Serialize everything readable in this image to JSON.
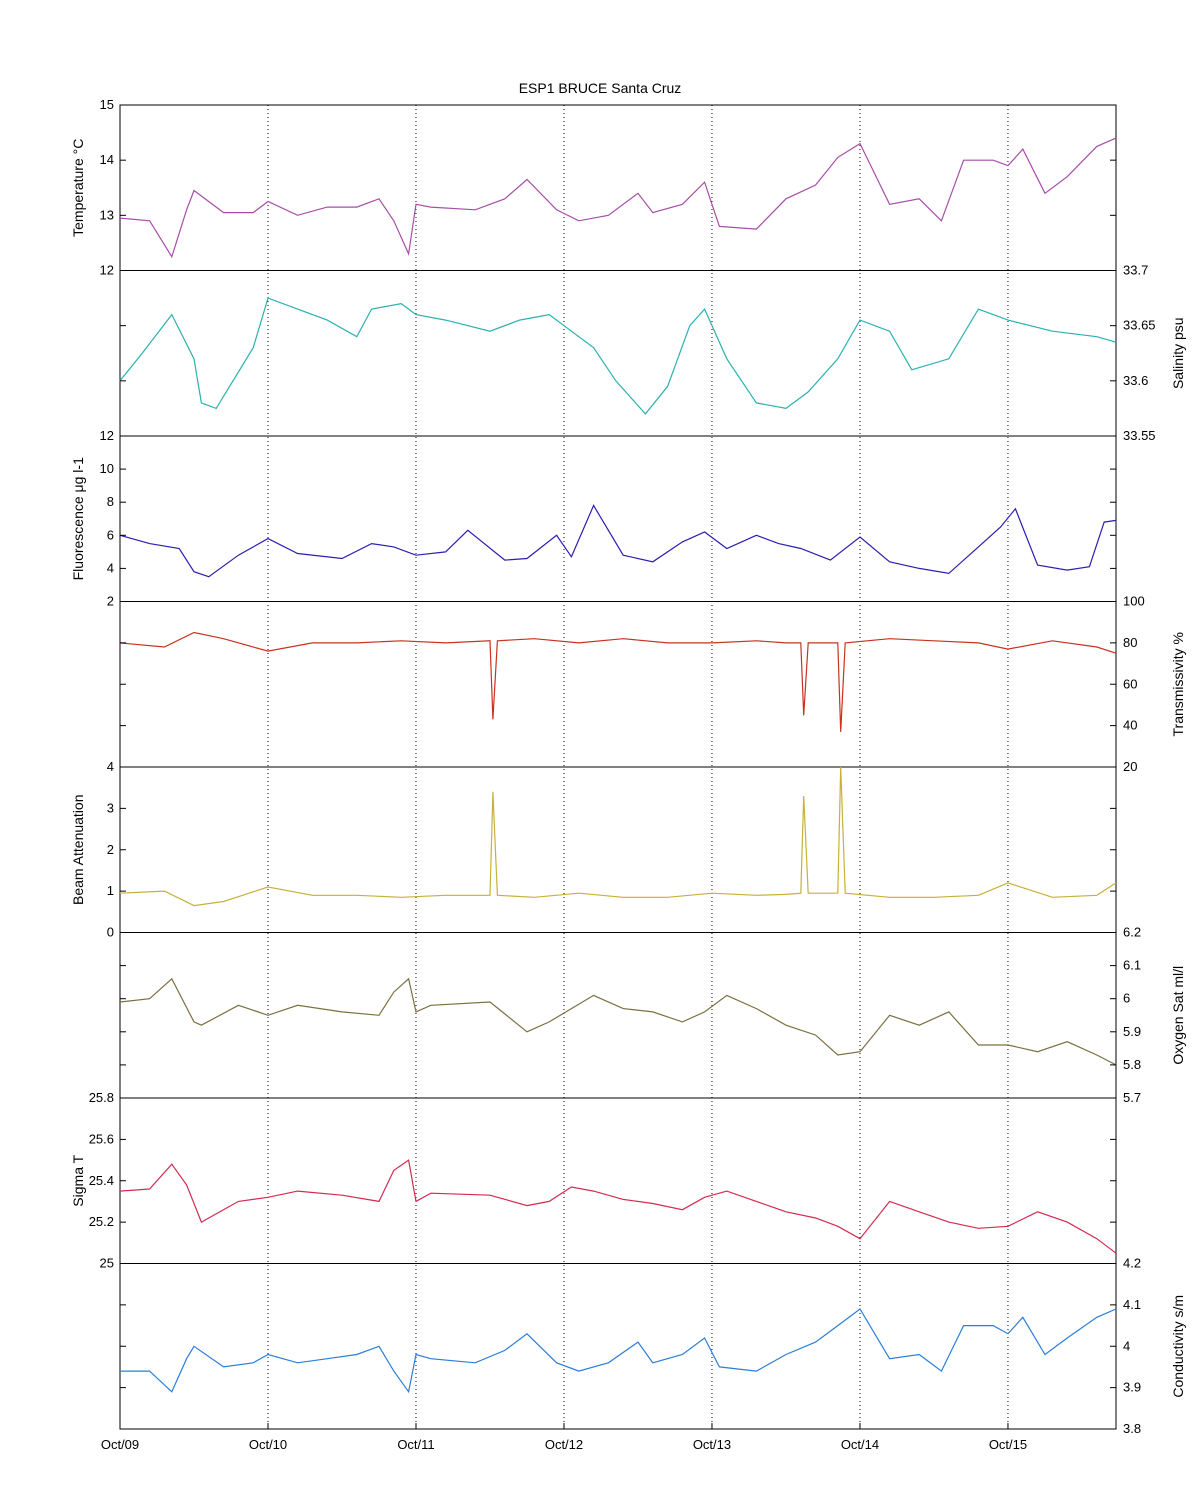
{
  "chart_data": {
    "type": "line",
    "title": "ESP1 BRUCE Santa Cruz",
    "x_axis": {
      "ticks": [
        "Oct/09",
        "Oct/10",
        "Oct/11",
        "Oct/12",
        "Oct/13",
        "Oct/14",
        "Oct/15"
      ],
      "xlim": [
        0,
        6.73
      ],
      "grid": "dotted vertical lines at day ticks"
    },
    "panels": [
      {
        "name": "temperature",
        "ylabel": "Temperature °C",
        "axis_side": "left",
        "ylim": [
          12,
          15
        ],
        "yticks": [
          "12",
          "13",
          "14",
          "15"
        ],
        "tick_values": [
          12,
          13,
          14,
          15
        ],
        "color": "#a64ea8",
        "x": [
          0,
          0.2,
          0.35,
          0.45,
          0.5,
          0.7,
          0.9,
          1.0,
          1.2,
          1.4,
          1.6,
          1.75,
          1.85,
          1.95,
          2.0,
          2.1,
          2.4,
          2.6,
          2.75,
          2.95,
          3.1,
          3.3,
          3.5,
          3.6,
          3.8,
          3.95,
          4.05,
          4.3,
          4.5,
          4.7,
          4.85,
          5.0,
          5.2,
          5.4,
          5.55,
          5.7,
          5.9,
          6.0,
          6.1,
          6.25,
          6.4,
          6.6,
          6.73
        ],
        "y": [
          12.95,
          12.9,
          12.25,
          13.1,
          13.45,
          13.05,
          13.05,
          13.25,
          13.0,
          13.15,
          13.15,
          13.3,
          12.9,
          12.3,
          13.2,
          13.15,
          13.1,
          13.3,
          13.65,
          13.1,
          12.9,
          13.0,
          13.4,
          13.05,
          13.2,
          13.6,
          12.8,
          12.75,
          13.3,
          13.55,
          14.05,
          14.3,
          13.2,
          13.3,
          12.9,
          14.0,
          14.0,
          13.9,
          14.2,
          13.4,
          13.7,
          14.25,
          14.4
        ]
      },
      {
        "name": "salinity",
        "ylabel": "Salinity psu",
        "axis_side": "right",
        "ylim": [
          33.55,
          33.7
        ],
        "yticks": [
          "33.55",
          "33.6",
          "33.65",
          "33.7"
        ],
        "tick_values": [
          33.55,
          33.6,
          33.65,
          33.7
        ],
        "color": "#2bb0b0",
        "x": [
          0,
          0.15,
          0.35,
          0.5,
          0.55,
          0.65,
          0.9,
          1.0,
          1.2,
          1.4,
          1.6,
          1.7,
          1.9,
          2.0,
          2.2,
          2.5,
          2.7,
          2.9,
          3.05,
          3.2,
          3.35,
          3.55,
          3.7,
          3.85,
          3.95,
          4.1,
          4.3,
          4.5,
          4.65,
          4.85,
          5.0,
          5.2,
          5.35,
          5.6,
          5.8,
          6.0,
          6.3,
          6.6,
          6.73
        ],
        "y": [
          33.6,
          33.625,
          33.66,
          33.62,
          33.58,
          33.575,
          33.63,
          33.675,
          33.665,
          33.655,
          33.64,
          33.665,
          33.67,
          33.66,
          33.655,
          33.645,
          33.655,
          33.66,
          33.645,
          33.63,
          33.6,
          33.57,
          33.595,
          33.65,
          33.665,
          33.62,
          33.58,
          33.575,
          33.59,
          33.62,
          33.655,
          33.645,
          33.61,
          33.62,
          33.665,
          33.655,
          33.645,
          33.64,
          33.635
        ]
      },
      {
        "name": "fluorescence",
        "ylabel": "Fluorescence μg l-1",
        "axis_side": "left",
        "ylim": [
          2,
          12
        ],
        "yticks": [
          "2",
          "4",
          "6",
          "8",
          "10",
          "12"
        ],
        "tick_values": [
          2,
          4,
          6,
          8,
          10,
          12
        ],
        "color": "#2a1fb0",
        "x": [
          0,
          0.2,
          0.4,
          0.5,
          0.6,
          0.8,
          1.0,
          1.2,
          1.5,
          1.7,
          1.85,
          2.0,
          2.2,
          2.35,
          2.6,
          2.75,
          2.95,
          3.05,
          3.2,
          3.4,
          3.6,
          3.8,
          3.95,
          4.1,
          4.3,
          4.45,
          4.6,
          4.8,
          5.0,
          5.2,
          5.4,
          5.6,
          5.8,
          5.95,
          6.05,
          6.2,
          6.4,
          6.55,
          6.65,
          6.73
        ],
        "y": [
          6.0,
          5.5,
          5.2,
          3.8,
          3.5,
          4.8,
          5.8,
          4.9,
          4.6,
          5.5,
          5.3,
          4.8,
          5.0,
          6.3,
          4.5,
          4.6,
          6.0,
          4.7,
          7.8,
          4.8,
          4.4,
          5.6,
          6.2,
          5.2,
          6.0,
          5.5,
          5.2,
          4.5,
          5.9,
          4.4,
          4.0,
          3.7,
          5.3,
          6.5,
          7.6,
          4.2,
          3.9,
          4.1,
          6.8,
          6.9
        ]
      },
      {
        "name": "transmissivity",
        "ylabel": "Transmissivity %",
        "axis_side": "right",
        "ylim": [
          20,
          100
        ],
        "yticks": [
          "20",
          "40",
          "60",
          "80",
          "100"
        ],
        "tick_values": [
          20,
          40,
          60,
          80,
          100
        ],
        "color": "#c8321e",
        "x": [
          0,
          0.3,
          0.5,
          0.7,
          1.0,
          1.3,
          1.6,
          1.9,
          2.2,
          2.5,
          2.52,
          2.55,
          2.8,
          3.1,
          3.4,
          3.7,
          4.0,
          4.3,
          4.5,
          4.6,
          4.62,
          4.65,
          4.85,
          4.87,
          4.9,
          5.2,
          5.5,
          5.8,
          6.0,
          6.3,
          6.6,
          6.73
        ],
        "y": [
          80,
          78,
          85,
          82,
          76,
          80,
          80,
          81,
          80,
          81,
          43,
          81,
          82,
          80,
          82,
          80,
          80,
          81,
          80,
          80,
          45,
          80,
          80,
          37,
          80,
          82,
          81,
          80,
          77,
          81,
          78,
          75
        ]
      },
      {
        "name": "beam_attenuation",
        "ylabel": "Beam Attenuation",
        "axis_side": "left",
        "ylim": [
          0,
          4
        ],
        "yticks": [
          "0",
          "1",
          "2",
          "3",
          "4"
        ],
        "tick_values": [
          0,
          1,
          2,
          3,
          4
        ],
        "color": "#c8b03a",
        "x": [
          0,
          0.3,
          0.5,
          0.7,
          1.0,
          1.3,
          1.6,
          1.9,
          2.2,
          2.5,
          2.52,
          2.55,
          2.8,
          3.1,
          3.4,
          3.7,
          4.0,
          4.3,
          4.5,
          4.6,
          4.62,
          4.65,
          4.85,
          4.87,
          4.9,
          5.2,
          5.5,
          5.8,
          6.0,
          6.3,
          6.6,
          6.73
        ],
        "y": [
          0.95,
          1.0,
          0.65,
          0.75,
          1.1,
          0.9,
          0.9,
          0.85,
          0.9,
          0.9,
          3.4,
          0.9,
          0.85,
          0.95,
          0.85,
          0.85,
          0.95,
          0.9,
          0.92,
          0.95,
          3.3,
          0.95,
          0.95,
          4.0,
          0.95,
          0.85,
          0.85,
          0.9,
          1.2,
          0.85,
          0.9,
          1.2
        ]
      },
      {
        "name": "oxygen_sat",
        "ylabel": "Oxygen Sat ml/l",
        "axis_side": "right",
        "ylim": [
          5.7,
          6.2
        ],
        "yticks": [
          "5.7",
          "5.8",
          "5.9",
          "6",
          "6.1",
          "6.2"
        ],
        "tick_values": [
          5.7,
          5.8,
          5.9,
          6.0,
          6.1,
          6.2
        ],
        "color": "#7a7040",
        "x": [
          0,
          0.2,
          0.35,
          0.5,
          0.55,
          0.8,
          1.0,
          1.2,
          1.5,
          1.75,
          1.85,
          1.95,
          2.0,
          2.1,
          2.5,
          2.75,
          2.9,
          3.05,
          3.2,
          3.4,
          3.6,
          3.8,
          3.95,
          4.1,
          4.3,
          4.5,
          4.7,
          4.85,
          5.0,
          5.2,
          5.4,
          5.6,
          5.8,
          6.0,
          6.2,
          6.4,
          6.6,
          6.73
        ],
        "y": [
          5.99,
          6.0,
          6.06,
          5.93,
          5.92,
          5.98,
          5.95,
          5.98,
          5.96,
          5.95,
          6.02,
          6.06,
          5.96,
          5.98,
          5.99,
          5.9,
          5.93,
          5.97,
          6.01,
          5.97,
          5.96,
          5.93,
          5.96,
          6.01,
          5.97,
          5.92,
          5.89,
          5.83,
          5.84,
          5.95,
          5.92,
          5.96,
          5.86,
          5.86,
          5.84,
          5.87,
          5.83,
          5.8
        ]
      },
      {
        "name": "sigma_t",
        "ylabel": "Sigma T",
        "axis_side": "left",
        "ylim": [
          25.0,
          25.8
        ],
        "yticks": [
          "25",
          "25.2",
          "25.4",
          "25.6",
          "25.8"
        ],
        "tick_values": [
          25.0,
          25.2,
          25.4,
          25.6,
          25.8
        ],
        "color": "#d42a50",
        "x": [
          0,
          0.2,
          0.35,
          0.45,
          0.55,
          0.8,
          1.0,
          1.2,
          1.5,
          1.75,
          1.85,
          1.95,
          2.0,
          2.1,
          2.5,
          2.75,
          2.9,
          3.05,
          3.2,
          3.4,
          3.6,
          3.8,
          3.95,
          4.1,
          4.3,
          4.5,
          4.7,
          4.85,
          5.0,
          5.2,
          5.4,
          5.6,
          5.8,
          6.0,
          6.2,
          6.4,
          6.6,
          6.73
        ],
        "y": [
          25.35,
          25.36,
          25.48,
          25.38,
          25.2,
          25.3,
          25.32,
          25.35,
          25.33,
          25.3,
          25.45,
          25.5,
          25.3,
          25.34,
          25.33,
          25.28,
          25.3,
          25.37,
          25.35,
          25.31,
          25.29,
          25.26,
          25.32,
          25.35,
          25.3,
          25.25,
          25.22,
          25.18,
          25.12,
          25.3,
          25.25,
          25.2,
          25.17,
          25.18,
          25.25,
          25.2,
          25.12,
          25.05
        ]
      },
      {
        "name": "conductivity",
        "ylabel": "Conductivity s/m",
        "axis_side": "right",
        "ylim": [
          3.8,
          4.2
        ],
        "yticks": [
          "3.8",
          "3.9",
          "4",
          "4.1",
          "4.2"
        ],
        "tick_values": [
          3.8,
          3.9,
          4.0,
          4.1,
          4.2
        ],
        "color": "#2a7ed8",
        "x": [
          0,
          0.2,
          0.35,
          0.45,
          0.5,
          0.7,
          0.9,
          1.0,
          1.2,
          1.4,
          1.6,
          1.75,
          1.85,
          1.95,
          2.0,
          2.1,
          2.4,
          2.6,
          2.75,
          2.95,
          3.1,
          3.3,
          3.5,
          3.6,
          3.8,
          3.95,
          4.05,
          4.3,
          4.5,
          4.7,
          4.85,
          5.0,
          5.2,
          5.4,
          5.55,
          5.7,
          5.9,
          6.0,
          6.1,
          6.25,
          6.4,
          6.6,
          6.73
        ],
        "y": [
          3.94,
          3.94,
          3.89,
          3.97,
          4.0,
          3.95,
          3.96,
          3.98,
          3.96,
          3.97,
          3.98,
          4.0,
          3.94,
          3.89,
          3.98,
          3.97,
          3.96,
          3.99,
          4.03,
          3.96,
          3.94,
          3.96,
          4.01,
          3.96,
          3.98,
          4.02,
          3.95,
          3.94,
          3.98,
          4.01,
          4.05,
          4.09,
          3.97,
          3.98,
          3.94,
          4.05,
          4.05,
          4.03,
          4.07,
          3.98,
          4.02,
          4.07,
          4.09
        ]
      }
    ]
  }
}
